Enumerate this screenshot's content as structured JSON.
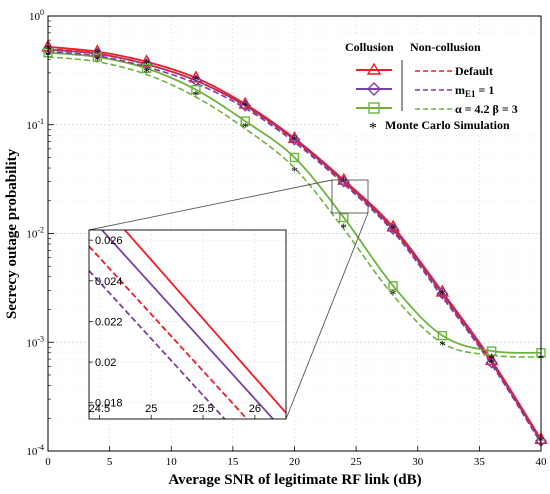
{
  "chart_data": {
    "type": "line",
    "xlabel": "Average SNR of legitimate RF link (dB)",
    "ylabel": "Secrecy outage probability",
    "xlim": [
      0,
      40
    ],
    "ylim": [
      0.0001,
      1
    ],
    "yscale": "log",
    "grid": true,
    "x_ticks": [
      "0",
      "5",
      "10",
      "15",
      "20",
      "25",
      "30",
      "35",
      "40"
    ],
    "y_ticks": [
      "10^0",
      "10^-1",
      "10^-2",
      "10^-3",
      "10^-4"
    ],
    "legend": {
      "placement": "top-right",
      "header_collusion": "Collusion",
      "header_noncollusion": "Non-collusion",
      "entries": [
        {
          "label": "Default"
        },
        {
          "label_prefix": "m",
          "label_sub": "E1",
          "label_suffix": " = 1"
        },
        {
          "label": "α = 4.2  β = 3"
        }
      ],
      "monte_carlo_label": "Monte Carlo Simulation"
    },
    "colors": {
      "red": "#ee1c25",
      "purple": "#7b3fa0",
      "green": "#6cb33f"
    },
    "x": [
      0,
      4,
      8,
      12,
      16,
      20,
      24,
      28,
      32,
      36,
      40
    ],
    "series": [
      {
        "style": "collusion",
        "color": "red",
        "marker": "triangle",
        "values": [
          0.52,
          0.47,
          0.38,
          0.27,
          0.155,
          0.075,
          0.031,
          0.0115,
          0.0029,
          0.00068,
          0.000128
        ]
      },
      {
        "style": "collusion",
        "color": "purple",
        "marker": "diamond",
        "values": [
          0.49,
          0.45,
          0.36,
          0.255,
          0.15,
          0.073,
          0.03,
          0.011,
          0.0028,
          0.00065,
          0.000124
        ]
      },
      {
        "style": "collusion",
        "color": "green",
        "marker": "square",
        "values": [
          0.46,
          0.42,
          0.33,
          0.21,
          0.108,
          0.05,
          0.014,
          0.0033,
          0.00115,
          0.00083,
          0.0008
        ]
      },
      {
        "style": "non-collusion",
        "color": "red",
        "values": [
          0.5,
          0.45,
          0.36,
          0.255,
          0.148,
          0.072,
          0.0295,
          0.0108,
          0.0027,
          0.00064,
          0.000122
        ]
      },
      {
        "style": "non-collusion",
        "color": "purple",
        "values": [
          0.47,
          0.43,
          0.34,
          0.24,
          0.142,
          0.069,
          0.0285,
          0.0104,
          0.0026,
          0.00062,
          0.000118
        ]
      },
      {
        "style": "non-collusion",
        "color": "green",
        "values": [
          0.42,
          0.38,
          0.29,
          0.18,
          0.092,
          0.04,
          0.011,
          0.0027,
          0.00098,
          0.00076,
          0.00073
        ]
      }
    ],
    "monte_carlo": [
      {
        "x": [
          0,
          4,
          8,
          12,
          16,
          20,
          24,
          28,
          32,
          36,
          40
        ],
        "values": [
          0.44,
          0.4,
          0.31,
          0.19,
          0.096,
          0.038,
          0.0115,
          0.0028,
          0.00095,
          0.00072,
          0.00072
        ]
      },
      {
        "x": [
          0,
          4,
          8,
          12,
          16,
          20,
          24,
          28,
          32,
          36,
          40
        ],
        "values": [
          0.5,
          0.46,
          0.37,
          0.26,
          0.152,
          0.074,
          0.0305,
          0.0112,
          0.0028,
          0.00066,
          0.000125
        ]
      }
    ],
    "inset": {
      "xlim": [
        24.4,
        26.3
      ],
      "ylim": [
        0.0172,
        0.0265
      ],
      "x_ticks": [
        "24.5",
        "25",
        "25.5",
        "26"
      ],
      "y_ticks": [
        "0.018",
        "0.02",
        "0.022",
        "0.024",
        "0.026"
      ],
      "lines": [
        {
          "color": "red",
          "dash": false,
          "x": [
            24.4,
            26.3
          ],
          "values": [
            0.0285,
            0.0175
          ]
        },
        {
          "color": "purple",
          "dash": false,
          "x": [
            24.4,
            26.3
          ],
          "values": [
            0.0272,
            0.0165
          ]
        },
        {
          "color": "red",
          "dash": true,
          "x": [
            24.4,
            26.3
          ],
          "values": [
            0.0257,
            0.0151
          ]
        },
        {
          "color": "purple",
          "dash": true,
          "x": [
            24.4,
            26.3
          ],
          "values": [
            0.0245,
            0.0139
          ]
        }
      ]
    }
  }
}
